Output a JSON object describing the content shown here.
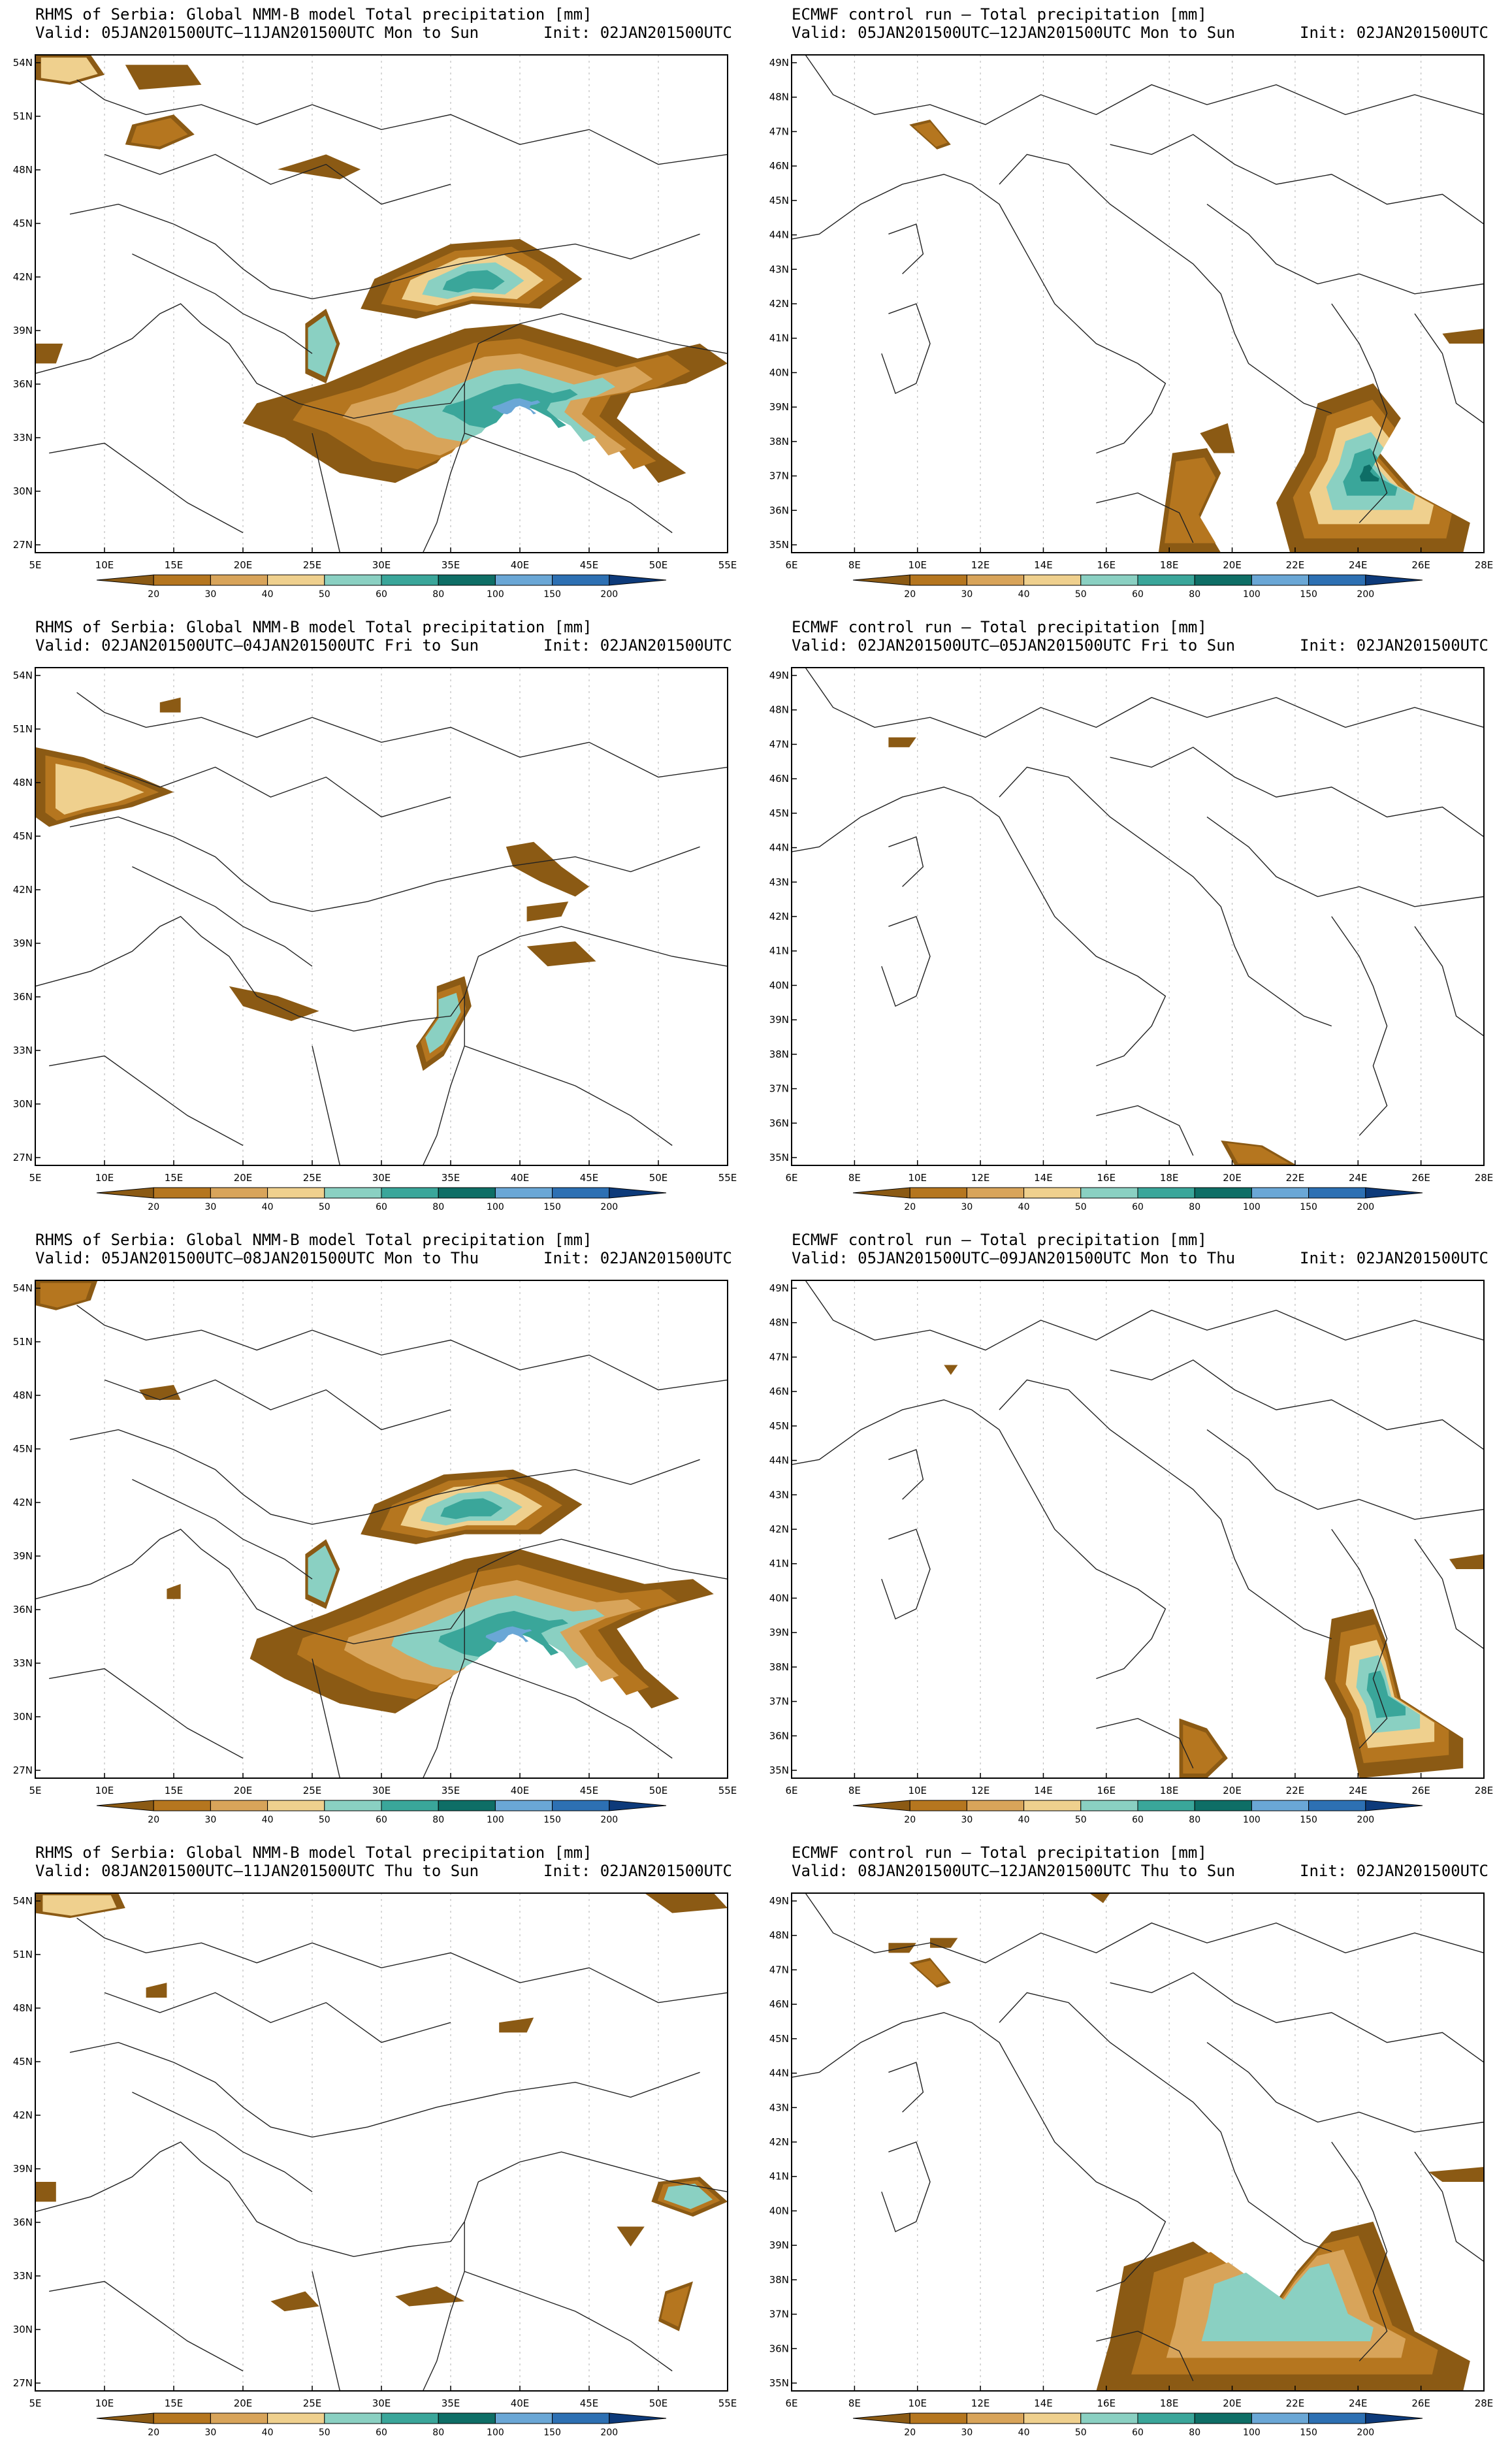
{
  "palette": {
    "levels": [
      "20",
      "30",
      "40",
      "50",
      "60",
      "80",
      "100",
      "150",
      "200"
    ],
    "colors": [
      "#8b5a14",
      "#b5761f",
      "#d8a45a",
      "#efd08e",
      "#8ad0c2",
      "#3aa69a",
      "#0e6e66",
      "#6aa7d6",
      "#2d70b3",
      "#0d3a7a"
    ]
  },
  "panels": [
    {
      "name": "nmmb-mon-sun",
      "title": "RHMS of Serbia: Global NMM-B model Total precipitation [mm]",
      "valid": "Valid: 05JAN201500UTC–11JAN201500UTC Mon to Sun",
      "init": "Init: 02JAN201500UTC",
      "map": "nmmb",
      "xticks": [
        "5E",
        "10E",
        "15E",
        "20E",
        "25E",
        "30E",
        "35E",
        "40E",
        "45E",
        "50E",
        "55E"
      ],
      "yticks": [
        "54N",
        "51N",
        "48N",
        "45N",
        "42N",
        "39N",
        "36N",
        "33N",
        "30N",
        "27N"
      ]
    },
    {
      "name": "ecmwf-mon-sun",
      "title": "ECMWF control run – Total precipitation [mm]",
      "valid": "Valid: 05JAN201500UTC–12JAN201500UTC Mon to Sun",
      "init": "Init: 02JAN201500UTC",
      "map": "ecmwf",
      "xticks": [
        "6E",
        "8E",
        "10E",
        "12E",
        "14E",
        "16E",
        "18E",
        "20E",
        "22E",
        "24E",
        "26E",
        "28E"
      ],
      "yticks": [
        "49N",
        "48N",
        "47N",
        "46N",
        "45N",
        "44N",
        "43N",
        "42N",
        "41N",
        "40N",
        "39N",
        "38N",
        "37N",
        "36N",
        "35N"
      ]
    },
    {
      "name": "nmmb-fri-sun",
      "title": "RHMS of Serbia: Global NMM-B model Total precipitation [mm]",
      "valid": "Valid: 02JAN201500UTC–04JAN201500UTC Fri to Sun",
      "init": "Init: 02JAN201500UTC",
      "map": "nmmb",
      "xticks": [
        "5E",
        "10E",
        "15E",
        "20E",
        "25E",
        "30E",
        "35E",
        "40E",
        "45E",
        "50E",
        "55E"
      ],
      "yticks": [
        "54N",
        "51N",
        "48N",
        "45N",
        "42N",
        "39N",
        "36N",
        "33N",
        "30N",
        "27N"
      ]
    },
    {
      "name": "ecmwf-fri-sun",
      "title": "ECMWF control run – Total precipitation [mm]",
      "valid": "Valid: 02JAN201500UTC–05JAN201500UTC Fri to Sun",
      "init": "Init: 02JAN201500UTC",
      "map": "ecmwf",
      "xticks": [
        "6E",
        "8E",
        "10E",
        "12E",
        "14E",
        "16E",
        "18E",
        "20E",
        "22E",
        "24E",
        "26E",
        "28E"
      ],
      "yticks": [
        "49N",
        "48N",
        "47N",
        "46N",
        "45N",
        "44N",
        "43N",
        "42N",
        "41N",
        "40N",
        "39N",
        "38N",
        "37N",
        "36N",
        "35N"
      ]
    },
    {
      "name": "nmmb-mon-thu",
      "title": "RHMS of Serbia: Global NMM-B model Total precipitation [mm]",
      "valid": "Valid: 05JAN201500UTC–08JAN201500UTC Mon to Thu",
      "init": "Init: 02JAN201500UTC",
      "map": "nmmb",
      "xticks": [
        "5E",
        "10E",
        "15E",
        "20E",
        "25E",
        "30E",
        "35E",
        "40E",
        "45E",
        "50E",
        "55E"
      ],
      "yticks": [
        "54N",
        "51N",
        "48N",
        "45N",
        "42N",
        "39N",
        "36N",
        "33N",
        "30N",
        "27N"
      ]
    },
    {
      "name": "ecmwf-mon-thu",
      "title": "ECMWF control run – Total precipitation [mm]",
      "valid": "Valid: 05JAN201500UTC–09JAN201500UTC Mon to Thu",
      "init": "Init: 02JAN201500UTC",
      "map": "ecmwf",
      "xticks": [
        "6E",
        "8E",
        "10E",
        "12E",
        "14E",
        "16E",
        "18E",
        "20E",
        "22E",
        "24E",
        "26E",
        "28E"
      ],
      "yticks": [
        "49N",
        "48N",
        "47N",
        "46N",
        "45N",
        "44N",
        "43N",
        "42N",
        "41N",
        "40N",
        "39N",
        "38N",
        "37N",
        "36N",
        "35N"
      ]
    },
    {
      "name": "nmmb-thu-sun",
      "title": "RHMS of Serbia: Global NMM-B model Total precipitation [mm]",
      "valid": "Valid: 08JAN201500UTC–11JAN201500UTC Thu to Sun",
      "init": "Init: 02JAN201500UTC",
      "map": "nmmb",
      "xticks": [
        "5E",
        "10E",
        "15E",
        "20E",
        "25E",
        "30E",
        "35E",
        "40E",
        "45E",
        "50E",
        "55E"
      ],
      "yticks": [
        "54N",
        "51N",
        "48N",
        "45N",
        "42N",
        "39N",
        "36N",
        "33N",
        "30N",
        "27N"
      ]
    },
    {
      "name": "ecmwf-thu-sun",
      "title": "ECMWF control run – Total precipitation [mm]",
      "valid": "Valid: 08JAN201500UTC–12JAN201500UTC Thu to Sun",
      "init": "Init: 02JAN201500UTC",
      "map": "ecmwf",
      "xticks": [
        "6E",
        "8E",
        "10E",
        "12E",
        "14E",
        "16E",
        "18E",
        "20E",
        "22E",
        "24E",
        "26E",
        "28E"
      ],
      "yticks": [
        "49N",
        "48N",
        "47N",
        "46N",
        "45N",
        "44N",
        "43N",
        "42N",
        "41N",
        "40N",
        "39N",
        "38N",
        "37N",
        "36N",
        "35N"
      ]
    }
  ]
}
